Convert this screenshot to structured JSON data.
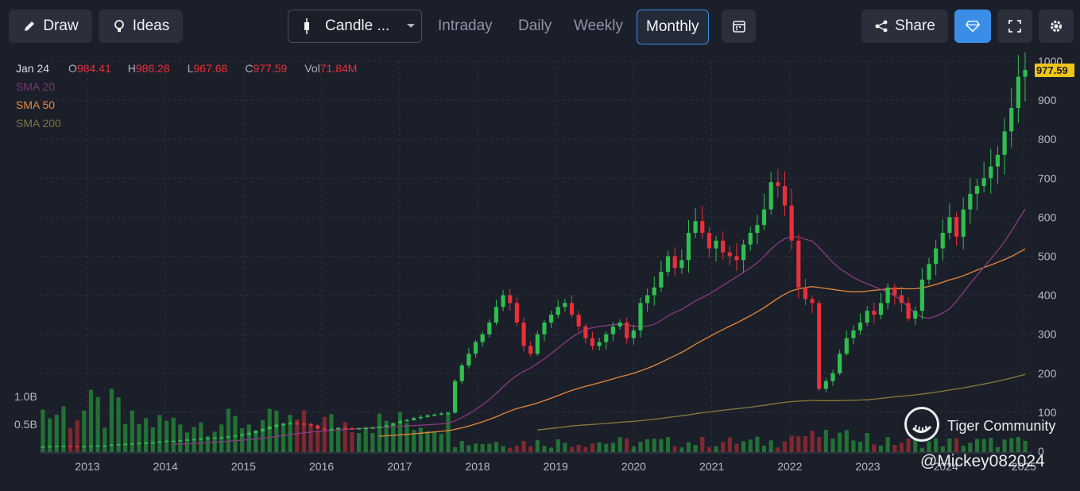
{
  "toolbar": {
    "draw_label": "Draw",
    "ideas_label": "Ideas",
    "chart_type_label": "Candle ...",
    "periods": [
      "Intraday",
      "Daily",
      "Weekly",
      "Monthly"
    ],
    "active_period": "Monthly",
    "share_label": "Share",
    "icons": [
      "pencil-icon",
      "bulb-icon",
      "candle-icon",
      "chevron-down-icon",
      "calendar-icon",
      "share-icon",
      "diamond-icon",
      "fullscreen-icon",
      "gear-icon"
    ]
  },
  "ohlc": {
    "date": "Jan 24",
    "o_label": "O",
    "o_value": "984.41",
    "h_label": "H",
    "h_value": "986.28",
    "l_label": "L",
    "l_value": "967.68",
    "c_label": "C",
    "c_value": "977.59",
    "v_label": "Vol",
    "v_value": "71.84M"
  },
  "indicators": {
    "sma20": "SMA 20",
    "sma50": "SMA 50",
    "sma200": "SMA 200"
  },
  "colors": {
    "up": "#2fbf4f",
    "down": "#e8303a",
    "sma20": "#8a3a83",
    "sma50": "#e8873a",
    "sma200": "#8a7a3a",
    "accent": "#3a8ee8",
    "price_tag": "#f0c419"
  },
  "watermark": {
    "brand": "Tiger Community",
    "user": "@Mickey082024"
  },
  "chart_data": {
    "type": "candlestick",
    "title": "",
    "xlabel": "",
    "ylabel": "",
    "ylim": [
      0,
      1000
    ],
    "y_ticks": [
      "1000",
      "900",
      "800",
      "700",
      "600",
      "500",
      "400",
      "300",
      "200",
      "100",
      "0"
    ],
    "volume_ticks": [
      "1.0B",
      "0.5B"
    ],
    "x_ticks": [
      "2013",
      "2014",
      "2015",
      "2016",
      "2017",
      "2018",
      "2019",
      "2020",
      "2021",
      "2022",
      "2023",
      "2024",
      "2025"
    ],
    "last_price": "977.59",
    "monthly_close": [
      12,
      13,
      14,
      14,
      13,
      12,
      13,
      14,
      15,
      15,
      17,
      18,
      19,
      20,
      21,
      22,
      23,
      25,
      27,
      27,
      28,
      30,
      31,
      33,
      34,
      35,
      36,
      38,
      41,
      43,
      47,
      52,
      57,
      63,
      68,
      70,
      72,
      71,
      69,
      66,
      58,
      55,
      57,
      60,
      59,
      58,
      59,
      60,
      61,
      63,
      66,
      72,
      77,
      80,
      85,
      88,
      92,
      94,
      97,
      99,
      180,
      220,
      250,
      280,
      300,
      330,
      370,
      400,
      380,
      330,
      270,
      250,
      300,
      330,
      350,
      370,
      380,
      350,
      320,
      290,
      270,
      280,
      300,
      320,
      330,
      290,
      310,
      380,
      400,
      420,
      460,
      500,
      470,
      490,
      560,
      590,
      560,
      520,
      540,
      510,
      500,
      490,
      530,
      560,
      580,
      620,
      690,
      680,
      630,
      540,
      420,
      390,
      380,
      160,
      180,
      200,
      250,
      290,
      310,
      330,
      360,
      350,
      380,
      420,
      400,
      380,
      340,
      360,
      440,
      480,
      520,
      560,
      600,
      550,
      620,
      660,
      680,
      700,
      730,
      760,
      820,
      880,
      960,
      977.59
    ],
    "sma20_end": 610,
    "sma50_end": 490,
    "sma200_end": 215
  }
}
